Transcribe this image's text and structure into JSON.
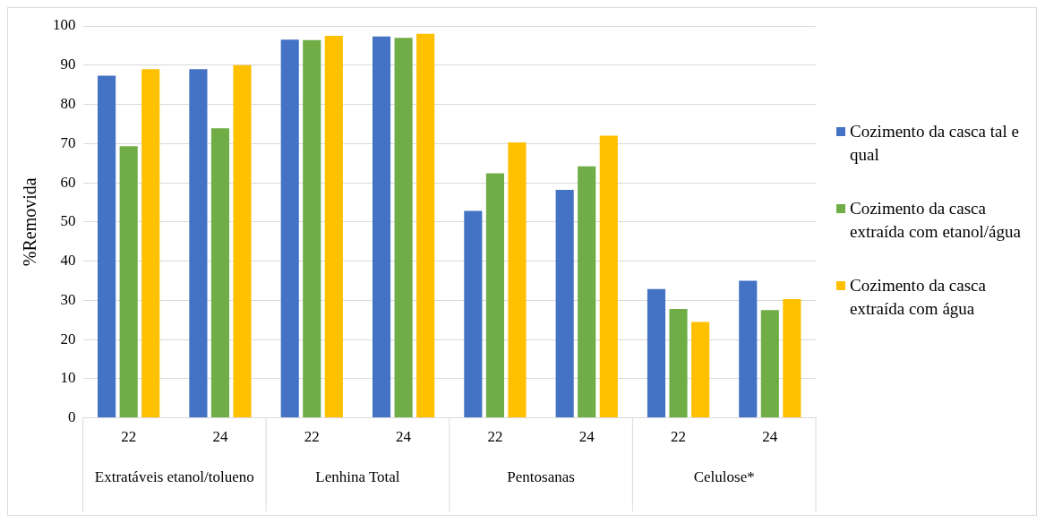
{
  "chart_data": {
    "type": "bar",
    "ylabel": "%Removida",
    "categories": [
      "22",
      "24",
      "22",
      "24",
      "22",
      "24",
      "22",
      "24"
    ],
    "annotations": [
      "Extratáveis etanol/tolueno",
      "Lenhina Total",
      "Pentosanas",
      "Celulose*"
    ],
    "series": [
      {
        "name": "Cozimento da casca tal e qual",
        "color": "#4472c4",
        "values": [
          87.3,
          89,
          96.5,
          97.3,
          52.8,
          58.2,
          32.9,
          35
        ]
      },
      {
        "name": "Cozimento da casca extraída com etanol/água",
        "color": "#70ad47",
        "values": [
          69.3,
          73.9,
          96.4,
          97,
          62.4,
          64.2,
          27.8,
          27.5
        ]
      },
      {
        "name": "Cozimento da casca extraída com água",
        "color": "#ffc000",
        "values": [
          89,
          90,
          97.5,
          98,
          70.3,
          72,
          24.5,
          30.3
        ]
      }
    ],
    "ylim": [
      0,
      100
    ],
    "yticks": [
      0,
      10,
      20,
      30,
      40,
      50,
      60,
      70,
      80,
      90,
      100
    ],
    "grid": "y",
    "legend": "right"
  }
}
